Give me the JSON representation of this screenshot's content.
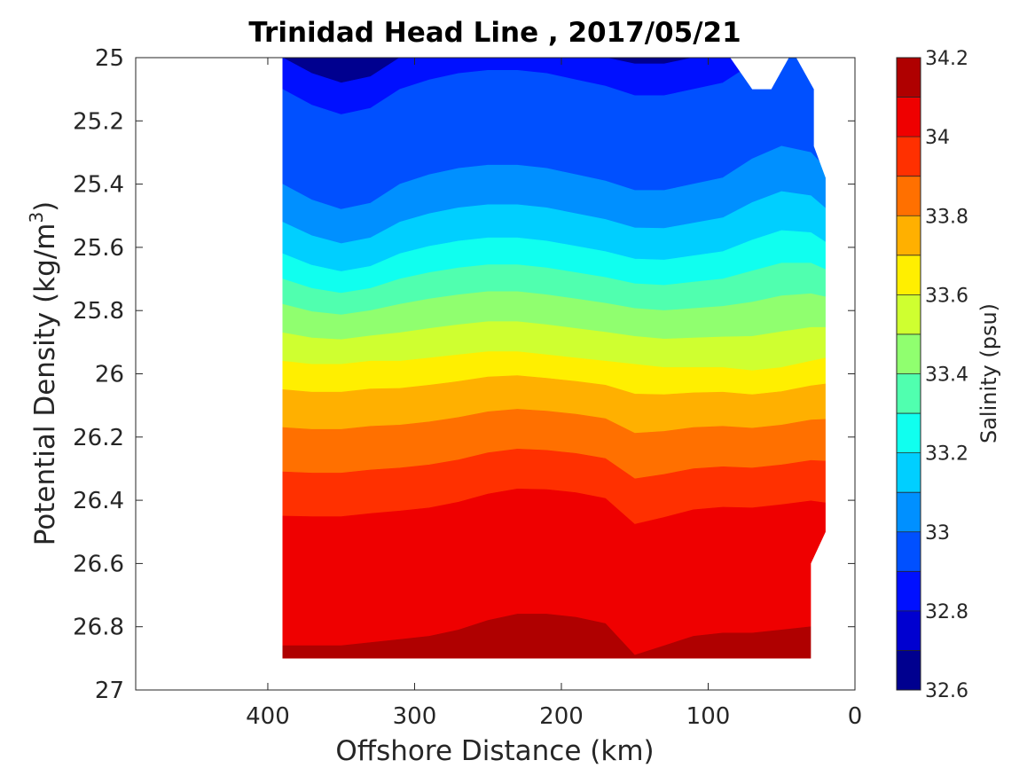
{
  "chart_data": {
    "type": "contour",
    "title": "Trinidad Head Line , 2017/05/21",
    "xlabel": "Offshore Distance (km)",
    "ylabel_main": "Potential Density (kg/m",
    "ylabel_sup": "3",
    "ylabel_close": ")",
    "colorbar_label": "Salinity (psu)",
    "xlim": [
      490,
      0
    ],
    "x_reversed": true,
    "ylim": [
      25,
      27
    ],
    "y_reversed": true,
    "xticks": [
      400,
      300,
      200,
      100,
      0
    ],
    "xtick_labels": [
      "400",
      "300",
      "200",
      "100",
      "0"
    ],
    "yticks": [
      25,
      25.2,
      25.4,
      25.6,
      25.8,
      26,
      26.2,
      26.4,
      26.6,
      26.8,
      27
    ],
    "ytick_labels": [
      "25",
      "25.2",
      "25.4",
      "25.6",
      "25.8",
      "26",
      "26.2",
      "26.4",
      "26.6",
      "26.8",
      "27"
    ],
    "colorbar_ticks": [
      32.6,
      32.8,
      33,
      33.2,
      33.4,
      33.6,
      33.8,
      34,
      34.2
    ],
    "colorbar_tick_labels": [
      "32.6",
      "32.8",
      "33",
      "33.2",
      "33.4",
      "33.6",
      "33.8",
      "34",
      "34.2"
    ],
    "colorbar_range": [
      32.6,
      34.2
    ],
    "levels": [
      32.6,
      32.7,
      32.8,
      32.9,
      33.0,
      33.1,
      33.2,
      33.3,
      33.4,
      33.5,
      33.6,
      33.7,
      33.8,
      33.9,
      34.0,
      34.1,
      34.2
    ],
    "colors": [
      "#00008f",
      "#0000d0",
      "#0010ff",
      "#0050ff",
      "#0090ff",
      "#00cfff",
      "#10ffef",
      "#50ffaf",
      "#90ff6f",
      "#cfff30",
      "#ffef00",
      "#ffb000",
      "#ff7000",
      "#ff3000",
      "#ef0000",
      "#af0000"
    ],
    "data_extent": {
      "x": [
        390,
        20
      ],
      "y": [
        25,
        26.9
      ]
    },
    "station_x": [
      390,
      370,
      350,
      330,
      310,
      290,
      270,
      250,
      230,
      210,
      190,
      170,
      150,
      130,
      110,
      90,
      70,
      50,
      30,
      20
    ],
    "boundary_offsets": [
      {
        "band": "32.9-33.0",
        "lower": 33.0,
        "offsets": [
          0.0,
          0.05,
          0.08,
          0.06,
          0.0,
          -0.03,
          -0.05,
          -0.06,
          -0.06,
          -0.05,
          -0.03,
          -0.01,
          0.02,
          0.02,
          0.0,
          -0.02,
          -0.08,
          -0.12,
          -0.1,
          -0.05
        ]
      },
      {
        "band": "33.5-33.6",
        "lower": 33.6,
        "offsets": [
          0.0,
          0.01,
          0.01,
          0.0,
          0.0,
          -0.01,
          -0.02,
          -0.03,
          -0.03,
          -0.02,
          -0.01,
          0.0,
          0.01,
          0.02,
          0.02,
          0.02,
          0.03,
          0.02,
          0.0,
          -0.01
        ]
      },
      {
        "band": "34.0-34.1",
        "lower": 34.1,
        "offsets": [
          0.0,
          0.0,
          0.0,
          -0.01,
          -0.02,
          -0.03,
          -0.05,
          -0.08,
          -0.1,
          -0.1,
          -0.09,
          -0.07,
          0.03,
          0.0,
          -0.03,
          -0.04,
          -0.04,
          -0.05,
          -0.06,
          -0.05
        ]
      }
    ]
  }
}
